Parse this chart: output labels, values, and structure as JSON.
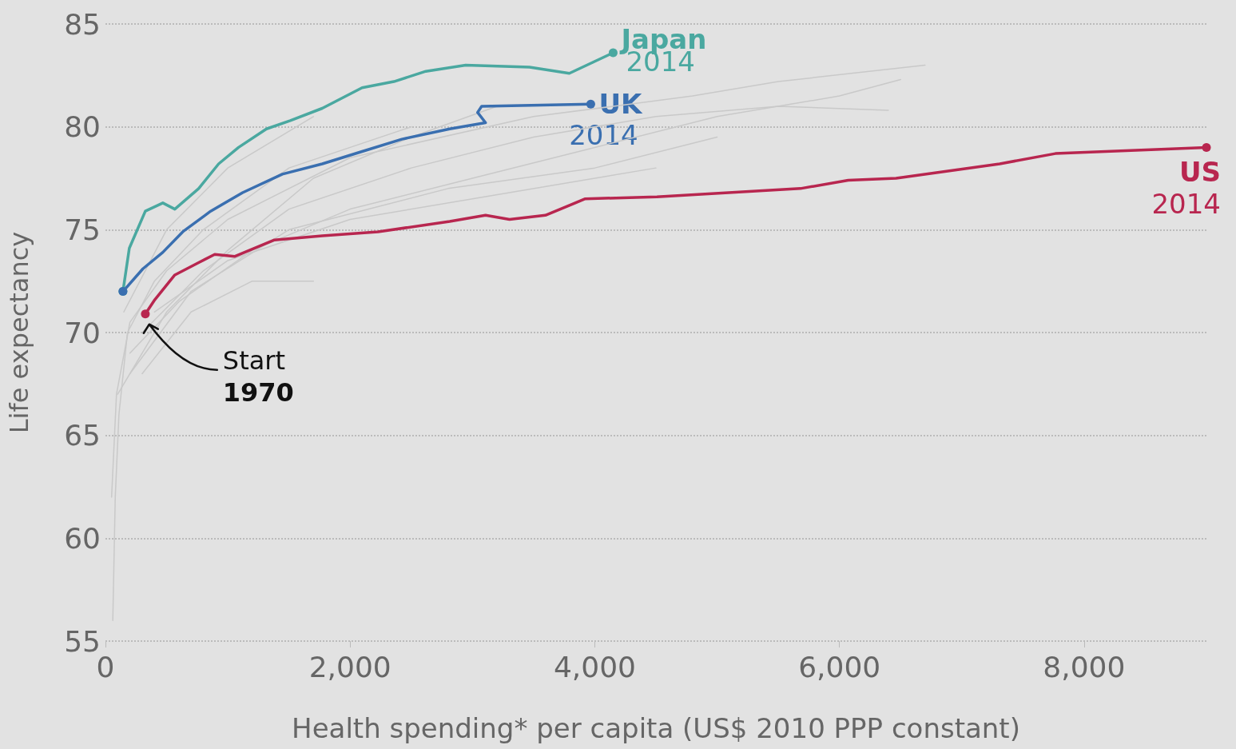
{
  "chart_data": {
    "type": "line",
    "xlabel": "Health spending* per capita (US$ 2010 PPP constant)",
    "ylabel": "Life expectancy",
    "xlim": [
      0,
      9000
    ],
    "xticks": [
      0,
      {
        "value": 2000,
        "label": "2,000"
      },
      {
        "value": 4000,
        "label": "4,000"
      },
      {
        "value": 6000,
        "label": "6,000"
      },
      {
        "value": 8000,
        "label": "8,000"
      }
    ],
    "ylim": [
      55,
      85
    ],
    "yticks": [
      55,
      60,
      65,
      70,
      75,
      80,
      85
    ],
    "grid": "y",
    "legend": false,
    "series": [
      {
        "color": "#c9c9c9",
        "x": [
          60,
          80,
          110,
          180,
          400,
          800,
          1500,
          2500
        ],
        "values": [
          56,
          62,
          66,
          70,
          72.5,
          75,
          78,
          80
        ]
      },
      {
        "color": "#c9c9c9",
        "x": [
          50,
          90,
          200,
          500,
          1000,
          2000,
          3500,
          4800,
          5500,
          6700
        ],
        "values": [
          62,
          67,
          70.5,
          73,
          75.5,
          78.5,
          80.5,
          81.5,
          82.2,
          83
        ]
      },
      {
        "color": "#c9c9c9",
        "x": [
          200,
          600,
          1200,
          2000,
          3000,
          4000,
          5000,
          6000,
          6500
        ],
        "values": [
          69,
          71.5,
          74,
          76,
          77.5,
          79,
          80.5,
          81.5,
          82.3
        ]
      },
      {
        "color": "#c9c9c9",
        "x": [
          300,
          800,
          1500,
          2500,
          3500,
          4500,
          5500,
          6400
        ],
        "values": [
          70,
          73,
          76,
          78,
          79.5,
          80.5,
          81,
          80.8
        ]
      },
      {
        "color": "#c9c9c9",
        "x": [
          300,
          700,
          1200,
          1700
        ],
        "values": [
          68,
          71,
          72.5,
          72.5
        ]
      },
      {
        "color": "#c9c9c9",
        "x": [
          100,
          500,
          1000,
          1700,
          2500,
          3200
        ],
        "values": [
          67,
          71,
          74,
          77.5,
          79.5,
          81
        ]
      },
      {
        "color": "#c9c9c9",
        "x": [
          150,
          500,
          1000,
          1700
        ],
        "values": [
          71,
          75,
          78,
          80.5
        ]
      },
      {
        "color": "#c9c9c9",
        "x": [
          200,
          700,
          1500,
          2800,
          4000,
          5000
        ],
        "values": [
          68,
          72,
          75,
          77,
          78,
          79.5
        ]
      },
      {
        "color": "#c9c9c9",
        "x": [
          400,
          1000,
          2000,
          3000,
          4000,
          4500
        ],
        "values": [
          71,
          73.5,
          75.5,
          76.5,
          77.5,
          78
        ]
      },
      {
        "name": "Japan",
        "color": "#4aa8a0",
        "x": [
          143,
          195,
          326,
          469,
          567,
          762,
          925,
          1088,
          1316,
          1511,
          1772,
          2098,
          2358,
          2619,
          2945,
          3466,
          3792,
          4150
        ],
        "values": [
          72.0,
          74.1,
          75.9,
          76.3,
          76.0,
          77.0,
          78.2,
          79.0,
          79.9,
          80.3,
          80.9,
          81.9,
          82.2,
          82.7,
          83.0,
          82.9,
          82.6,
          83.6
        ]
      },
      {
        "name": "UK",
        "color": "#3a6fb0",
        "x": [
          143,
          306,
          469,
          632,
          860,
          1121,
          1446,
          1772,
          2098,
          2423,
          2814,
          3107,
          3042,
          3075,
          3967
        ],
        "values": [
          72.0,
          73.1,
          73.9,
          74.9,
          75.9,
          76.8,
          77.7,
          78.2,
          78.8,
          79.4,
          79.9,
          80.2,
          80.7,
          81.0,
          81.1
        ]
      },
      {
        "name": "US",
        "color": "#b8264f",
        "x": [
          326,
          404,
          567,
          762,
          893,
          1055,
          1381,
          1772,
          2228,
          2814,
          3107,
          3303,
          3596,
          3922,
          4508,
          5681,
          6072,
          6463,
          7310,
          7765,
          9000
        ],
        "values": [
          70.9,
          71.6,
          72.8,
          73.4,
          73.8,
          73.7,
          74.5,
          74.7,
          74.9,
          75.4,
          75.7,
          75.5,
          75.7,
          76.5,
          76.6,
          77.0,
          77.4,
          77.5,
          78.2,
          78.7,
          79.0
        ]
      }
    ],
    "annotations": [
      {
        "text": "2014",
        "x": 4150,
        "y": 83.6
      },
      {
        "text": "2014",
        "x": 3967,
        "y": 81.1
      },
      {
        "text": "2014",
        "x": 9000,
        "y": 79.0
      },
      {
        "text": "Start 1970",
        "x": 358,
        "y": 70.4
      }
    ]
  }
}
